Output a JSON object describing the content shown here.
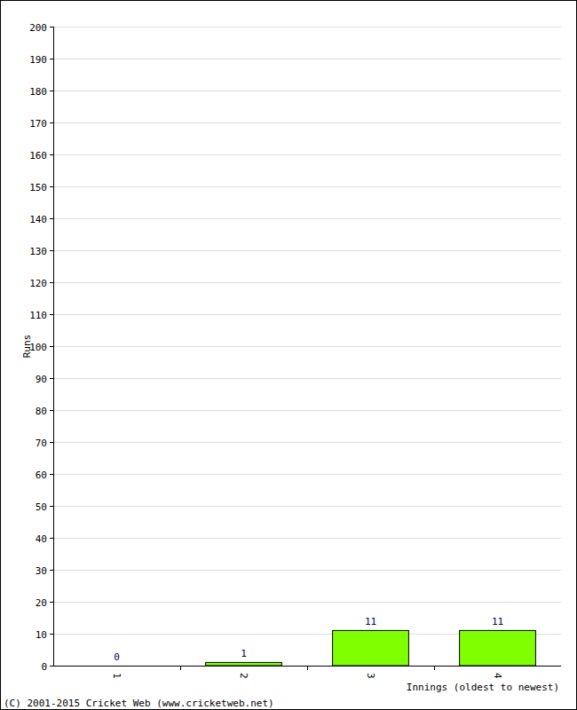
{
  "chart_data": {
    "type": "bar",
    "x_label": "Innings (oldest to newest)",
    "y_label": "Runs",
    "annotations": [
      "(C) 2001-2015 Cricket Web (www.cricketweb.net)"
    ],
    "categories": [
      "1",
      "2",
      "3",
      "4"
    ],
    "values": [
      0,
      1,
      11,
      11
    ],
    "color": "#80ff00",
    "ylim": [
      0,
      200
    ],
    "yticks": [
      0,
      10,
      20,
      30,
      40,
      50,
      60,
      70,
      80,
      90,
      100,
      110,
      120,
      130,
      140,
      150,
      160,
      170,
      180,
      190,
      200
    ],
    "grid": true,
    "data_labels": true
  }
}
